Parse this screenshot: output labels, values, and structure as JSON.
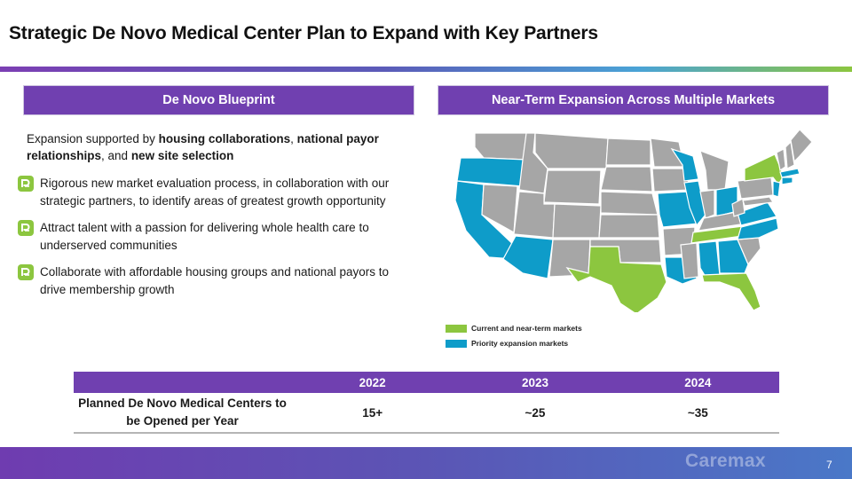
{
  "title": "Strategic De Novo Medical Center Plan to Expand with Key Partners",
  "left_panel": {
    "header": "De Novo Blueprint",
    "intro": [
      {
        "text": "Expansion supported by ",
        "bold": false
      },
      {
        "text": "housing collaborations",
        "bold": true
      },
      {
        "text": ", ",
        "bold": false
      },
      {
        "text": "national payor relationships",
        "bold": true
      },
      {
        "text": ", and ",
        "bold": false
      },
      {
        "text": "new site selection",
        "bold": true
      }
    ],
    "bullets": [
      "Rigorous new market evaluation process, in collaboration with our strategic partners, to identify areas of greatest growth opportunity",
      "Attract talent with a passion for delivering whole health care to underserved communities",
      "Collaborate with affordable housing groups and national payors to drive membership growth"
    ],
    "bullet_icon": "caremax-logo-icon"
  },
  "right_panel": {
    "header": "Near-Term Expansion Across Multiple Markets",
    "map_icon": "us-states-map",
    "legend": [
      {
        "label": "Current and near-term markets",
        "color": "#8cc63f"
      },
      {
        "label": "Priority expansion markets",
        "color": "#0e9cc9"
      }
    ],
    "other_state_color": "#a6a6a6"
  },
  "table": {
    "columns": [
      "",
      "2022",
      "2023",
      "2024"
    ],
    "row_label": "Planned De Novo Medical Centers to be Opened per Year",
    "values": [
      "15+",
      "~25",
      "~35"
    ]
  },
  "footer": {
    "logo": "Caremax",
    "page_number": "7"
  },
  "colors": {
    "purple": "#7040b0",
    "green": "#8cc63f",
    "teal": "#0e9cc9",
    "gray": "#a6a6a6"
  }
}
